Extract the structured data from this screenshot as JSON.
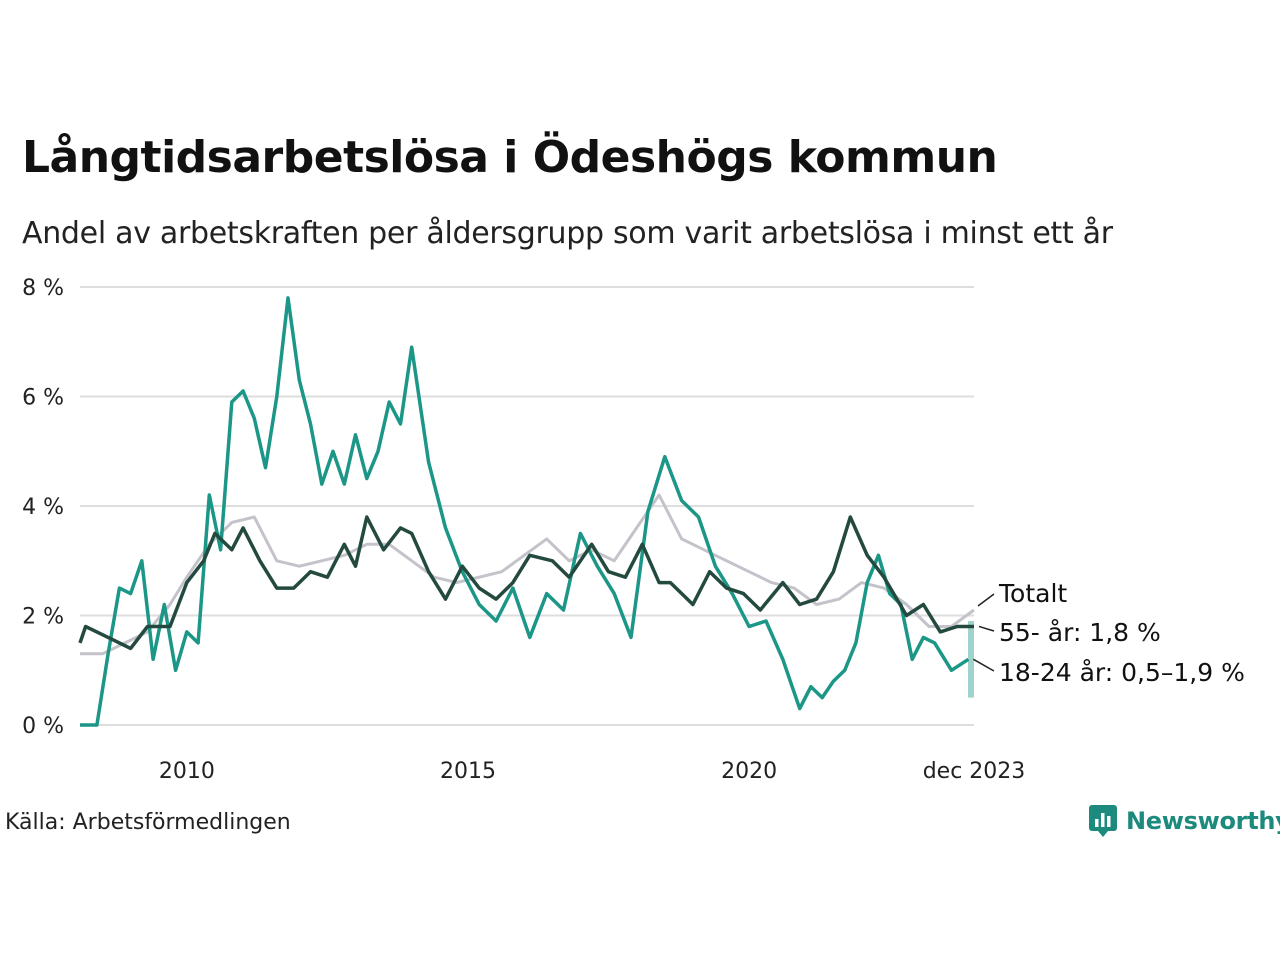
{
  "title": "Långtidsarbetslösa i Ödeshögs kommun",
  "subtitle": "Andel av arbetskraften per åldersgrupp som varit arbetslösa i minst ett år",
  "source": "Källa: Arbetsförmedlingen",
  "brand": "Newsworthy",
  "colors": {
    "total": "#c4c2ca",
    "age55": "#244a3f",
    "age1824": "#1b9687",
    "band": "#9fd4cc",
    "grid": "#dedede",
    "brand": "#1c8a7c"
  },
  "chart_data": {
    "type": "line",
    "title": "Långtidsarbetslösa i Ödeshögs kommun",
    "xlabel": "",
    "ylabel": "",
    "ylim": [
      0,
      8
    ],
    "xlim": [
      2008.1,
      2024.0
    ],
    "yticks": [
      0,
      2,
      4,
      6,
      8
    ],
    "ytick_labels": [
      "0 %",
      "2 %",
      "4 %",
      "6 %",
      "8 %"
    ],
    "xticks": [
      2010,
      2015,
      2020,
      2024.0
    ],
    "xtick_labels": [
      "2010",
      "2015",
      "2020",
      "dec 2023"
    ],
    "grid": true,
    "series": [
      {
        "name": "Totalt",
        "label": "Totalt",
        "x": [
          2008.1,
          2008.5,
          2008.9,
          2009.3,
          2009.7,
          2010.0,
          2010.4,
          2010.8,
          2011.2,
          2011.6,
          2012.0,
          2012.4,
          2012.8,
          2013.2,
          2013.6,
          2014.0,
          2014.4,
          2014.8,
          2015.2,
          2015.6,
          2016.0,
          2016.4,
          2016.8,
          2017.2,
          2017.6,
          2018.0,
          2018.4,
          2018.8,
          2019.2,
          2019.6,
          2020.0,
          2020.4,
          2020.8,
          2021.2,
          2021.6,
          2022.0,
          2022.4,
          2022.8,
          2023.2,
          2023.6,
          2024.0
        ],
        "y": [
          1.3,
          1.3,
          1.5,
          1.7,
          2.2,
          2.7,
          3.3,
          3.7,
          3.8,
          3.0,
          2.9,
          3.0,
          3.1,
          3.3,
          3.3,
          3.0,
          2.7,
          2.6,
          2.7,
          2.8,
          3.1,
          3.4,
          3.0,
          3.2,
          3.0,
          3.6,
          4.2,
          3.4,
          3.2,
          3.0,
          2.8,
          2.6,
          2.5,
          2.2,
          2.3,
          2.6,
          2.5,
          2.2,
          1.8,
          1.8,
          2.1
        ]
      },
      {
        "name": "55- år",
        "label": "55- år: 1,8 %",
        "x": [
          2008.1,
          2008.2,
          2008.6,
          2009.0,
          2009.3,
          2009.7,
          2010.0,
          2010.3,
          2010.5,
          2010.8,
          2011.0,
          2011.3,
          2011.6,
          2011.9,
          2012.2,
          2012.5,
          2012.8,
          2013.0,
          2013.2,
          2013.5,
          2013.8,
          2014.0,
          2014.3,
          2014.6,
          2014.9,
          2015.2,
          2015.5,
          2015.8,
          2016.1,
          2016.5,
          2016.8,
          2017.2,
          2017.5,
          2017.8,
          2018.1,
          2018.4,
          2018.6,
          2019.0,
          2019.3,
          2019.6,
          2019.9,
          2020.2,
          2020.6,
          2020.9,
          2021.2,
          2021.5,
          2021.8,
          2022.1,
          2022.4,
          2022.8,
          2023.1,
          2023.4,
          2023.7,
          2024.0
        ],
        "y": [
          1.5,
          1.8,
          1.6,
          1.4,
          1.8,
          1.8,
          2.6,
          3.0,
          3.5,
          3.2,
          3.6,
          3.0,
          2.5,
          2.5,
          2.8,
          2.7,
          3.3,
          2.9,
          3.8,
          3.2,
          3.6,
          3.5,
          2.8,
          2.3,
          2.9,
          2.5,
          2.3,
          2.6,
          3.1,
          3.0,
          2.7,
          3.3,
          2.8,
          2.7,
          3.3,
          2.6,
          2.6,
          2.2,
          2.8,
          2.5,
          2.4,
          2.1,
          2.6,
          2.2,
          2.3,
          2.8,
          3.8,
          3.1,
          2.7,
          2.0,
          2.2,
          1.7,
          1.8,
          1.8
        ]
      },
      {
        "name": "18-24 år",
        "label": "18-24 år: 0,5–1,9 %",
        "x": [
          2008.1,
          2008.4,
          2008.6,
          2008.8,
          2009.0,
          2009.2,
          2009.4,
          2009.6,
          2009.8,
          2010.0,
          2010.2,
          2010.4,
          2010.6,
          2010.8,
          2011.0,
          2011.2,
          2011.4,
          2011.6,
          2011.8,
          2012.0,
          2012.2,
          2012.4,
          2012.6,
          2012.8,
          2013.0,
          2013.2,
          2013.4,
          2013.6,
          2013.8,
          2014.0,
          2014.3,
          2014.6,
          2014.9,
          2015.2,
          2015.5,
          2015.8,
          2016.1,
          2016.4,
          2016.7,
          2017.0,
          2017.3,
          2017.6,
          2017.9,
          2018.2,
          2018.5,
          2018.8,
          2019.1,
          2019.4,
          2019.7,
          2020.0,
          2020.3,
          2020.6,
          2020.9,
          2021.1,
          2021.3,
          2021.5,
          2021.7,
          2021.9,
          2022.1,
          2022.3,
          2022.5,
          2022.7,
          2022.9,
          2023.1,
          2023.3,
          2023.6,
          2023.9
        ],
        "y": [
          0,
          0,
          1.3,
          2.5,
          2.4,
          3.0,
          1.2,
          2.2,
          1.0,
          1.7,
          1.5,
          4.2,
          3.2,
          5.9,
          6.1,
          5.6,
          4.7,
          6.0,
          7.8,
          6.3,
          5.5,
          4.4,
          5.0,
          4.4,
          5.3,
          4.5,
          5.0,
          5.9,
          5.5,
          6.9,
          4.8,
          3.6,
          2.8,
          2.2,
          1.9,
          2.5,
          1.6,
          2.4,
          2.1,
          3.5,
          2.9,
          2.4,
          1.6,
          3.9,
          4.9,
          4.1,
          3.8,
          2.9,
          2.4,
          1.8,
          1.9,
          1.2,
          0.3,
          0.7,
          0.5,
          0.8,
          1.0,
          1.5,
          2.6,
          3.1,
          2.4,
          2.2,
          1.2,
          1.6,
          1.5,
          1.0,
          1.2
        ]
      }
    ],
    "end_range": {
      "series": "18-24 år",
      "low": 0.5,
      "high": 1.9
    }
  }
}
